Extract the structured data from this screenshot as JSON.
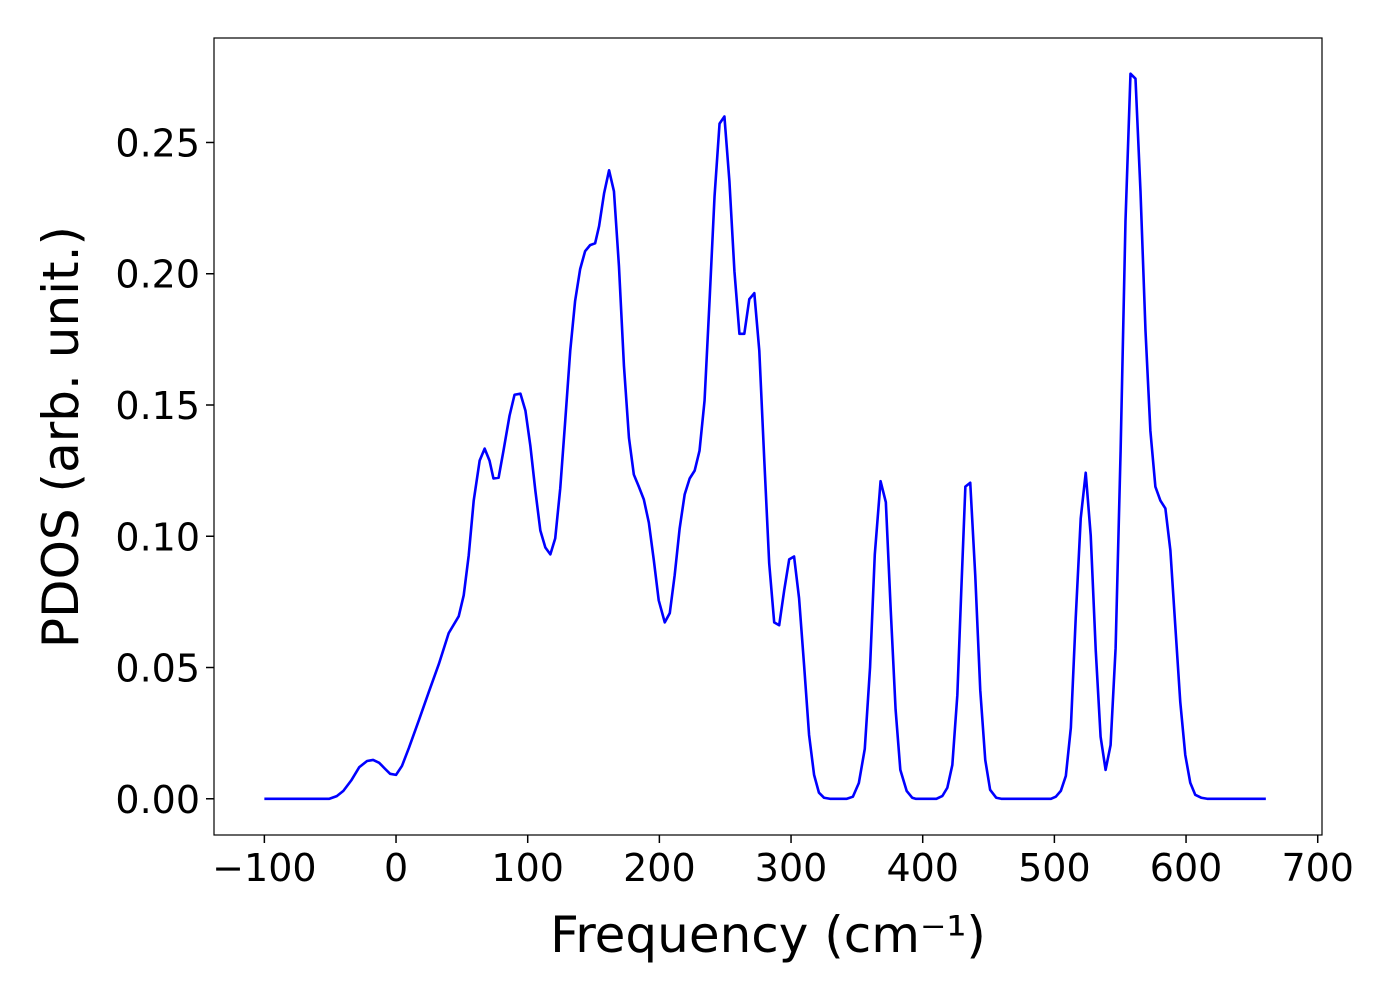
{
  "chart_data": {
    "type": "line",
    "xlabel": "Frequency (cm⁻¹)",
    "ylabel": "PDOS (arb. unit.)",
    "xlim": [
      -138.25,
      703.25
    ],
    "ylim": [
      -0.0138,
      0.2898
    ],
    "xticks": [
      {
        "value": -100,
        "label": "−100"
      },
      0,
      100,
      200,
      300,
      400,
      500,
      600,
      700
    ],
    "yticks": [
      {
        "value": 0,
        "label": "0.00"
      },
      {
        "value": 0.05,
        "label": "0.05"
      },
      {
        "value": 0.1,
        "label": "0.10"
      },
      {
        "value": 0.15,
        "label": "0.15"
      },
      {
        "value": 0.2,
        "label": "0.20"
      },
      {
        "value": 0.25,
        "label": "0.25"
      }
    ],
    "grid": false,
    "series": [
      {
        "color": "#0000ff",
        "x": [
          -100,
          -50.6,
          -45,
          -40,
          -34,
          -28,
          -22,
          -17.4,
          -12.8,
          -8.3,
          -4.5,
          0,
          4.5,
          9.8,
          17.4,
          24.9,
          32.5,
          40,
          47.6,
          51.4,
          55.2,
          59,
          63.5,
          67.3,
          71,
          74,
          77.9,
          81.6,
          86.2,
          90,
          94.5,
          98.3,
          102,
          105.8,
          109.6,
          113.4,
          117.2,
          120.9,
          124.7,
          128.5,
          132.3,
          136,
          139.8,
          143.6,
          147.4,
          151.2,
          154.2,
          158,
          161.8,
          165.5,
          169.3,
          173.1,
          176.9,
          180.6,
          184.4,
          188.2,
          192,
          195.8,
          199.5,
          204.1,
          207.9,
          211.6,
          215.4,
          219.2,
          223,
          226.8,
          230.5,
          234.3,
          238.1,
          241.9,
          245.7,
          249.4,
          253.2,
          257,
          260.8,
          264.5,
          268.3,
          272.1,
          275.9,
          279.7,
          283.4,
          287.2,
          291,
          294.8,
          298.6,
          302.3,
          306.1,
          309.9,
          313.7,
          317.5,
          321.2,
          325,
          329.5,
          342.4,
          347,
          351.5,
          356,
          360,
          363.6,
          368,
          372,
          375.7,
          379.4,
          383,
          387.8,
          392,
          394.6,
          410.4,
          415,
          418.7,
          422.5,
          426.3,
          429.3,
          432.4,
          436.1,
          439.9,
          443.7,
          447.5,
          451.2,
          455.8,
          459.6,
          497.4,
          501.1,
          504.9,
          508.7,
          512.5,
          516.2,
          520,
          523.8,
          527.6,
          531.4,
          535.1,
          538.9,
          542.7,
          546.5,
          550.3,
          554,
          557.8,
          561.6,
          565.4,
          569.2,
          572.9,
          576.7,
          580.5,
          584.3,
          588.1,
          591.8,
          595.6,
          599.4,
          603.2,
          607,
          611.5,
          616,
          660.6
        ],
        "values": [
          0,
          0,
          0.001,
          0.003,
          0.007,
          0.012,
          0.0144,
          0.0148,
          0.0137,
          0.0114,
          0.0095,
          0.0091,
          0.0125,
          0.0194,
          0.03,
          0.0407,
          0.0513,
          0.0631,
          0.0695,
          0.0775,
          0.0927,
          0.1136,
          0.1288,
          0.1334,
          0.1288,
          0.122,
          0.1223,
          0.1326,
          0.1459,
          0.1539,
          0.1543,
          0.1478,
          0.1345,
          0.1174,
          0.1022,
          0.0957,
          0.0931,
          0.0992,
          0.1182,
          0.144,
          0.1706,
          0.1896,
          0.2017,
          0.2086,
          0.2109,
          0.2116,
          0.2181,
          0.2306,
          0.2394,
          0.2314,
          0.2029,
          0.1649,
          0.1375,
          0.1235,
          0.1189,
          0.114,
          0.1052,
          0.0908,
          0.0756,
          0.0672,
          0.0707,
          0.0851,
          0.103,
          0.1159,
          0.122,
          0.125,
          0.1326,
          0.1516,
          0.1896,
          0.2295,
          0.2572,
          0.2599,
          0.2352,
          0.201,
          0.1771,
          0.1771,
          0.1903,
          0.1926,
          0.1706,
          0.1288,
          0.0897,
          0.0672,
          0.0661,
          0.0794,
          0.0912,
          0.0923,
          0.0764,
          0.0509,
          0.0243,
          0.0091,
          0.0023,
          0.0004,
          0,
          0,
          0.0008,
          0.006,
          0.019,
          0.05,
          0.093,
          0.121,
          0.113,
          0.072,
          0.034,
          0.011,
          0.003,
          0.0004,
          0,
          0,
          0.0011,
          0.0042,
          0.0129,
          0.0395,
          0.0794,
          0.1189,
          0.1204,
          0.0851,
          0.0414,
          0.0148,
          0.0034,
          0.0004,
          0,
          0,
          0.0008,
          0.003,
          0.0087,
          0.027,
          0.0688,
          0.1068,
          0.1242,
          0.1003,
          0.0566,
          0.0236,
          0.011,
          0.0205,
          0.0574,
          0.1326,
          0.22,
          0.2762,
          0.2743,
          0.2314,
          0.1782,
          0.1402,
          0.1189,
          0.1136,
          0.1106,
          0.0946,
          0.0661,
          0.0369,
          0.0167,
          0.0061,
          0.0015,
          0.0004,
          0,
          0
        ]
      }
    ]
  }
}
